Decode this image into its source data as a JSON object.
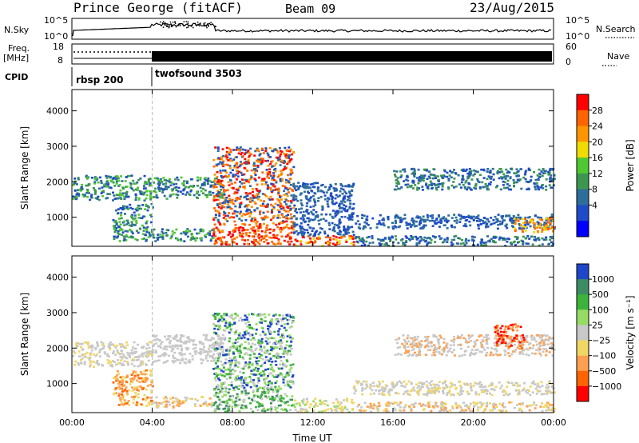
{
  "header": {
    "station": "Prince George (fitACF)",
    "beam": "Beam 09",
    "date": "23/Aug/2015"
  },
  "top_panels": {
    "nsky_label": "N.Sky",
    "nsky_ticks": [
      "10^5",
      "10^0"
    ],
    "nsky_right_ticks": [
      "10^5",
      "10^0"
    ],
    "nsearch_label": "N.Search",
    "freq_label": "Freq.",
    "freq_unit": "[MHz]",
    "freq_ticks": [
      "18",
      "8"
    ],
    "nave_ticks": [
      "60",
      "0"
    ],
    "nave_label": "Nave",
    "cpid_label": "CPID",
    "cpid_segments": [
      {
        "name": "rbsp 200",
        "start_hour": 0
      },
      {
        "name": "twofsound 3503",
        "start_hour": 4
      }
    ]
  },
  "chart_data": [
    {
      "type": "heatmap",
      "name": "power",
      "ylabel": "Slant Range [km]",
      "ylim": [
        180,
        4600
      ],
      "y_ticks": [
        1000,
        2000,
        3000,
        4000
      ],
      "x_ticks": [
        "00:00",
        "04:00",
        "08:00",
        "12:00",
        "16:00",
        "20:00",
        "00:00"
      ],
      "x_hours": [
        0,
        4,
        8,
        12,
        16,
        20,
        24
      ],
      "colorbar_label": "Power [dB]",
      "colorbar_ticks": [
        "28",
        "24",
        "20",
        "16",
        "12",
        "8",
        "4"
      ],
      "colorbar_colors": [
        "#ff0000",
        "#ff6400",
        "#ff9600",
        "#f0dc00",
        "#50c832",
        "#3c9650",
        "#2d6e9b",
        "#1e4bc8",
        "#0000ff"
      ],
      "regions": [
        {
          "h": [
            0,
            4
          ],
          "r": [
            1500,
            2200
          ],
          "cls": [
            7,
            4,
            5,
            6
          ]
        },
        {
          "h": [
            4,
            7.5
          ],
          "r": [
            1550,
            2150
          ],
          "cls": [
            7,
            5,
            4,
            6
          ]
        },
        {
          "h": [
            2,
            4
          ],
          "r": [
            350,
            1400
          ],
          "cls": [
            6,
            7,
            4,
            5
          ]
        },
        {
          "h": [
            4,
            7
          ],
          "r": [
            350,
            700
          ],
          "cls": [
            6,
            5,
            7,
            4
          ]
        },
        {
          "h": [
            7,
            11
          ],
          "r": [
            250,
            900
          ],
          "cls": [
            0,
            1,
            0,
            2,
            1
          ]
        },
        {
          "h": [
            7,
            11
          ],
          "r": [
            900,
            3000
          ],
          "cls": [
            1,
            2,
            6,
            7,
            0
          ]
        },
        {
          "h": [
            11,
            14
          ],
          "r": [
            220,
            500
          ],
          "cls": [
            0,
            1,
            3
          ]
        },
        {
          "h": [
            11,
            14
          ],
          "r": [
            500,
            2000
          ],
          "cls": [
            7,
            6
          ]
        },
        {
          "h": [
            14,
            24
          ],
          "r": [
            220,
            500
          ],
          "cls": [
            7,
            6,
            5
          ]
        },
        {
          "h": [
            14,
            24
          ],
          "r": [
            700,
            1100
          ],
          "cls": [
            7,
            6
          ]
        },
        {
          "h": [
            16,
            24
          ],
          "r": [
            1800,
            2400
          ],
          "cls": [
            7,
            6,
            5
          ]
        },
        {
          "h": [
            22,
            24
          ],
          "r": [
            600,
            1000
          ],
          "cls": [
            2,
            1,
            3
          ]
        }
      ]
    },
    {
      "type": "heatmap",
      "name": "velocity",
      "ylabel": "Slant Range [km]",
      "ylim": [
        180,
        4600
      ],
      "y_ticks": [
        1000,
        2000,
        3000,
        4000
      ],
      "x_ticks": [
        "00:00",
        "04:00",
        "08:00",
        "12:00",
        "16:00",
        "20:00",
        "00:00"
      ],
      "x_hours": [
        0,
        4,
        8,
        12,
        16,
        20,
        24
      ],
      "xlabel": "Time UT",
      "colorbar_label": "Velocity [m s⁻¹]",
      "colorbar_ticks": [
        "1000",
        "500",
        "100",
        "25",
        "−25",
        "−100",
        "−500",
        "−1000"
      ],
      "colorbar_colors": [
        "#1e46c8",
        "#3c8c64",
        "#3cb43c",
        "#96dc64",
        "#c8c8c8",
        "#f0d764",
        "#ffa050",
        "#ff6400",
        "#ff0000"
      ],
      "regions": [
        {
          "h": [
            0,
            4
          ],
          "r": [
            1500,
            2200
          ],
          "cls": [
            4,
            4,
            4,
            5
          ]
        },
        {
          "h": [
            4,
            7.5
          ],
          "r": [
            1600,
            2400
          ],
          "cls": [
            4,
            4,
            4
          ]
        },
        {
          "h": [
            2,
            4
          ],
          "r": [
            400,
            1400
          ],
          "cls": [
            7,
            6,
            5
          ]
        },
        {
          "h": [
            4,
            7
          ],
          "r": [
            350,
            650
          ],
          "cls": [
            5,
            6,
            4
          ]
        },
        {
          "h": [
            7,
            11
          ],
          "r": [
            220,
            900
          ],
          "cls": [
            2,
            3,
            1,
            4
          ]
        },
        {
          "h": [
            7,
            11
          ],
          "r": [
            900,
            3000
          ],
          "cls": [
            4,
            3,
            2,
            0
          ]
        },
        {
          "h": [
            11,
            14
          ],
          "r": [
            220,
            600
          ],
          "cls": [
            3,
            4,
            5
          ]
        },
        {
          "h": [
            14,
            24
          ],
          "r": [
            220,
            500
          ],
          "cls": [
            5,
            4,
            6
          ]
        },
        {
          "h": [
            14,
            24
          ],
          "r": [
            700,
            1100
          ],
          "cls": [
            4,
            4,
            5
          ]
        },
        {
          "h": [
            16,
            24
          ],
          "r": [
            1800,
            2400
          ],
          "cls": [
            4,
            4,
            6
          ]
        },
        {
          "h": [
            21,
            22.5
          ],
          "r": [
            2000,
            2700
          ],
          "cls": [
            8,
            7,
            6
          ]
        }
      ]
    }
  ]
}
